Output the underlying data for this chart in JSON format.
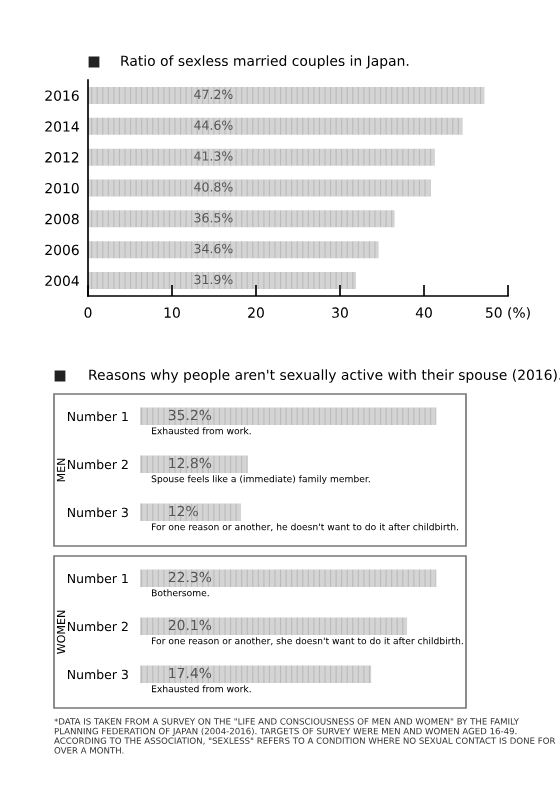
{
  "chart_data": [
    {
      "type": "bar",
      "orientation": "horizontal",
      "title": "Ratio of sexless married couples in Japan.",
      "categories": [
        "2016",
        "2014",
        "2012",
        "2010",
        "2008",
        "2006",
        "2004"
      ],
      "values": [
        47.2,
        44.6,
        41.3,
        40.8,
        36.5,
        34.6,
        31.9
      ],
      "value_labels": [
        "47.2%",
        "44.6%",
        "41.3%",
        "40.8%",
        "36.5%",
        "34.6%",
        "31.9%"
      ],
      "color": "#d4d4d4",
      "xlim": [
        0,
        50
      ],
      "xticks": [
        0,
        10,
        20,
        30,
        40,
        {
          "value": 50,
          "label": "50 (%)"
        }
      ],
      "grid": false,
      "legend": false
    },
    {
      "type": "bar",
      "orientation": "horizontal",
      "title": "Reasons why people aren't sexually active with their spouse (2016).",
      "ylabel": "MEN",
      "categories": [
        "Number 1",
        "Number 2",
        "Number 3"
      ],
      "values": [
        35.2,
        12.8,
        12
      ],
      "value_labels": [
        "35.2%",
        "12.8%",
        "12%"
      ],
      "color": "#d4d4d4",
      "tick_labels": "y",
      "legend": false,
      "grid": false,
      "annotations": [
        "Exhausted from work.",
        "Spouse feels like a (immediate) family member.",
        "For one reason or another, he doesn't want to do it after childbirth."
      ]
    },
    {
      "type": "bar",
      "orientation": "horizontal",
      "ylabel": "WOMEN",
      "categories": [
        "Number 1",
        "Number 2",
        "Number 3"
      ],
      "values": [
        22.3,
        20.1,
        17.4
      ],
      "value_labels": [
        "22.3%",
        "20.1%",
        "17.4%"
      ],
      "color": "#d4d4d4",
      "tick_labels": "y",
      "legend": false,
      "grid": false,
      "annotations": [
        "Bothersome.",
        "For one reason or another, she doesn't want to do it after childbirth.",
        "Exhausted from work.",
        "*DATA IS TAKEN FROM A SURVEY ON THE \"LIFE AND CONSCIOUSNESS OF MEN AND WOMEN\" BY THE FAMILY PLANNING FEDERATION OF JAPAN (2004-2016). TARGETS OF SURVEY WERE MEN AND WOMEN AGED 16-49. ACCORDING TO THE ASSOCIATION, \"SEXLESS\" REFERS TO A CONDITION WHERE NO SEXUAL CONTACT IS DONE FOR OVER A MONTH."
      ]
    }
  ]
}
